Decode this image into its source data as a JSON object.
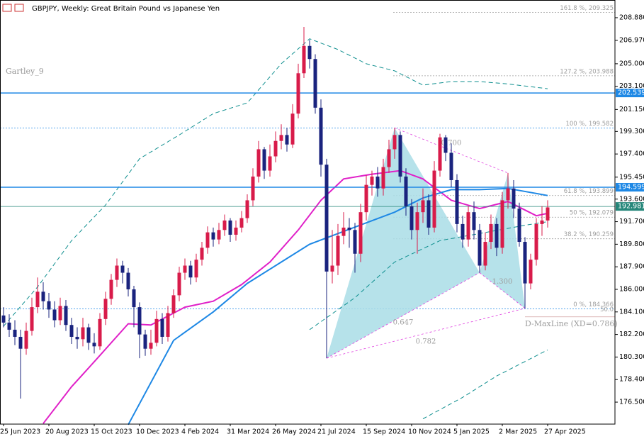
{
  "chart_data": {
    "type": "candlestick",
    "title": "GBPJPY, Weekly:  Great Britain Pound vs Japanese Yen",
    "indicator_label": "Gartley_9",
    "categories": [
      "25 Jun 2023",
      null,
      null,
      null,
      null,
      null,
      null,
      null,
      "20 Aug 2023",
      null,
      null,
      null,
      null,
      null,
      null,
      null,
      "15 Oct 2023",
      null,
      null,
      null,
      null,
      null,
      null,
      null,
      "10 Dec 2023",
      null,
      null,
      null,
      null,
      null,
      null,
      null,
      "4 Feb 2024",
      null,
      null,
      null,
      null,
      null,
      null,
      null,
      "31 Mar 2024",
      null,
      null,
      null,
      null,
      null,
      null,
      null,
      "26 May 2024",
      null,
      null,
      null,
      null,
      null,
      null,
      null,
      "21 Jul 2024",
      null,
      null,
      null,
      null,
      null,
      null,
      null,
      "15 Sep 2024",
      null,
      null,
      null,
      null,
      null,
      null,
      null,
      "10 Nov 2024",
      null,
      null,
      null,
      null,
      null,
      null,
      null,
      "5 Jan 2025",
      null,
      null,
      null,
      null,
      null,
      null,
      null,
      "2 Mar 2025",
      null,
      null,
      null,
      null,
      null,
      null,
      null,
      "27 Apr 2025"
    ],
    "open": [
      183.8,
      183.2,
      182.6,
      182.0,
      181.0,
      182.5,
      184.5,
      185.8,
      185.0,
      184.3,
      183.4,
      184.6,
      183.0,
      182.0,
      181.8,
      182.8,
      181.5,
      181.2,
      183.5,
      185.2,
      186.8,
      188.0,
      187.4,
      186.0,
      184.5,
      182.2,
      181.0,
      181.5,
      183.5,
      182.0,
      184.0,
      185.5,
      187.4,
      188.0,
      187.0,
      188.5,
      189.5,
      190.8,
      190.2,
      191.0,
      191.8,
      190.6,
      191.2,
      192.0,
      193.5,
      195.5,
      197.8,
      196.0,
      197.2,
      198.5,
      199.0,
      198.2,
      200.8,
      204.2,
      206.5,
      205.4,
      201.3,
      196.5,
      187.5,
      188.0,
      190.5,
      191.2,
      191.0,
      189.0,
      192.5,
      194.8,
      195.5,
      194.5,
      196.3,
      197.8,
      199.0,
      195.5,
      193.0,
      191.0,
      192.5,
      193.5,
      191.2,
      196.0,
      198.8,
      197.5,
      195.2,
      191.5,
      190.2,
      192.5,
      191.0,
      188.0,
      190.0,
      191.5,
      189.5,
      193.5,
      194.5,
      192.8,
      190.0,
      186.5,
      188.5,
      191.5,
      191.8
    ],
    "high": [
      184.5,
      183.9,
      183.4,
      182.6,
      183.2,
      185.3,
      187.0,
      186.6,
      185.7,
      185.0,
      185.3,
      185.1,
      183.6,
      182.8,
      183.6,
      183.1,
      182.3,
      184.0,
      185.8,
      187.3,
      188.6,
      188.4,
      187.8,
      186.3,
      184.9,
      182.6,
      182.6,
      184.2,
      184.0,
      184.6,
      186.0,
      187.9,
      188.6,
      188.4,
      189.0,
      190.0,
      191.3,
      191.2,
      191.6,
      192.3,
      192.0,
      191.8,
      192.6,
      194.0,
      196.2,
      198.5,
      198.0,
      198.2,
      199.3,
      199.9,
      199.6,
      201.6,
      205.0,
      208.1,
      207.0,
      205.8,
      202.0,
      197.0,
      191.0,
      191.5,
      192.5,
      192.0,
      191.6,
      193.2,
      195.6,
      196.0,
      196.3,
      197.0,
      198.6,
      199.6,
      199.3,
      196.2,
      193.6,
      193.3,
      194.5,
      194.0,
      196.8,
      199.1,
      199.0,
      198.3,
      195.7,
      192.2,
      193.0,
      193.4,
      191.5,
      190.8,
      192.3,
      192.0,
      194.2,
      195.8,
      195.2,
      193.3,
      190.4,
      189.0,
      192.0,
      193.0,
      193.5
    ],
    "low": [
      182.8,
      182.0,
      181.3,
      176.8,
      180.5,
      182.1,
      184.0,
      184.3,
      183.6,
      182.8,
      183.0,
      182.5,
      181.4,
      181.0,
      181.2,
      180.9,
      180.6,
      180.9,
      183.0,
      184.7,
      186.2,
      186.5,
      185.4,
      182.8,
      180.2,
      180.4,
      180.5,
      181.2,
      181.4,
      181.6,
      183.6,
      185.0,
      186.8,
      186.4,
      186.6,
      188.0,
      189.0,
      189.6,
      189.8,
      190.5,
      190.0,
      190.1,
      190.8,
      191.6,
      193.0,
      195.0,
      195.3,
      195.5,
      196.7,
      197.8,
      197.6,
      197.9,
      200.4,
      203.8,
      204.6,
      200.8,
      195.5,
      180.2,
      186.5,
      187.2,
      189.8,
      189.5,
      187.4,
      188.3,
      191.8,
      193.9,
      193.8,
      193.9,
      195.8,
      197.0,
      195.0,
      192.2,
      190.2,
      189.0,
      191.6,
      190.6,
      190.8,
      195.5,
      196.8,
      194.6,
      190.8,
      189.5,
      189.6,
      190.2,
      187.4,
      187.6,
      189.4,
      188.8,
      189.0,
      192.8,
      192.0,
      189.6,
      184.4,
      186.0,
      188.0,
      190.5,
      191.2
    ],
    "close": [
      183.2,
      182.6,
      182.0,
      181.0,
      182.5,
      184.5,
      185.8,
      185.0,
      184.3,
      183.4,
      184.6,
      183.0,
      182.0,
      181.8,
      182.8,
      181.5,
      181.2,
      183.5,
      185.2,
      186.8,
      188.0,
      187.4,
      186.0,
      184.5,
      182.2,
      181.0,
      181.5,
      183.5,
      182.0,
      184.0,
      185.5,
      187.4,
      188.0,
      187.0,
      188.5,
      189.5,
      190.8,
      190.2,
      191.0,
      191.8,
      190.6,
      191.2,
      192.0,
      193.5,
      195.5,
      197.8,
      196.0,
      197.2,
      198.5,
      199.0,
      198.2,
      200.8,
      204.2,
      206.5,
      205.4,
      201.3,
      196.5,
      187.5,
      188.0,
      190.5,
      191.2,
      191.0,
      189.0,
      192.5,
      194.8,
      195.5,
      194.5,
      196.3,
      197.8,
      199.0,
      195.5,
      193.0,
      191.0,
      192.5,
      193.5,
      191.2,
      196.0,
      198.8,
      197.5,
      195.2,
      191.5,
      190.2,
      192.5,
      191.0,
      188.0,
      190.0,
      191.5,
      189.5,
      193.5,
      194.5,
      192.8,
      190.0,
      186.5,
      188.5,
      191.5,
      191.8,
      192.9
    ],
    "up_color": "#d81b4a",
    "down_color": "#1a237e",
    "xlim": [
      -0.625,
      107.875
    ],
    "ylim": [
      174.65,
      210.37
    ],
    "yticks": [
      {
        "value": 208.88,
        "label": "208.880"
      },
      {
        "value": 206.97,
        "label": "206.970"
      },
      {
        "value": 205.0,
        "label": "205.000"
      },
      {
        "value": 203.1,
        "label": "203.100"
      },
      {
        "value": 201.15,
        "label": "201.150"
      },
      {
        "value": 199.3,
        "label": "199.300"
      },
      {
        "value": 197.4,
        "label": "197.400"
      },
      {
        "value": 195.45,
        "label": "195.450"
      },
      {
        "value": 193.6,
        "label": "193.600"
      },
      {
        "value": 191.7,
        "label": "191.700"
      },
      {
        "value": 189.8,
        "label": "189.800"
      },
      {
        "value": 187.9,
        "label": "187.900"
      },
      {
        "value": 186.0,
        "label": "186.000"
      },
      {
        "value": 184.1,
        "label": "184.100"
      },
      {
        "value": 182.2,
        "label": "182.200"
      },
      {
        "value": 180.3,
        "label": "180.300"
      },
      {
        "value": 178.4,
        "label": "178.400"
      },
      {
        "value": 176.5,
        "label": "176.500"
      }
    ],
    "overlays": [
      {
        "color": "#e020c8",
        "dash": "",
        "x": [
          7,
          12,
          16,
          22,
          26,
          32,
          37,
          42,
          47,
          52,
          56,
          60,
          65,
          70,
          74,
          79,
          84,
          89,
          94,
          96
        ],
        "values": [
          174.7,
          177.8,
          179.9,
          183.1,
          183.0,
          184.5,
          185.0,
          186.4,
          188.3,
          191.0,
          193.5,
          195.3,
          195.7,
          196.0,
          195.3,
          193.5,
          192.8,
          193.4,
          192.2,
          192.4
        ]
      },
      {
        "color": "#1e88e5",
        "dash": "",
        "x": [
          22,
          30,
          37,
          43,
          49,
          54,
          59,
          64,
          69,
          74,
          79,
          84,
          89,
          96
        ],
        "values": [
          174.6,
          181.7,
          184.1,
          186.5,
          188.3,
          189.8,
          190.7,
          191.6,
          192.5,
          193.7,
          194.4,
          194.4,
          194.5,
          193.9
        ]
      },
      {
        "color": "#0f8f8f",
        "dash": "6 4",
        "x": [
          0,
          6,
          12,
          18,
          24,
          31,
          37,
          43,
          49,
          54,
          59,
          64,
          69,
          74,
          79,
          84,
          89,
          96
        ],
        "values": [
          182.9,
          186.2,
          190.1,
          193.1,
          197.0,
          199.0,
          200.8,
          201.7,
          205.0,
          207.1,
          206.2,
          205.0,
          204.4,
          203.2,
          203.5,
          203.5,
          203.3,
          202.9
        ]
      },
      {
        "color": "#0f8f8f",
        "dash": "6 4",
        "x": [
          54,
          62,
          69,
          77,
          84,
          92,
          96
        ],
        "values": [
          182.6,
          185.3,
          188.3,
          190.1,
          190.7,
          191.4,
          191.7
        ]
      },
      {
        "color": "#0f8f8f",
        "dash": "6 4",
        "x": [
          74,
          81,
          87,
          96
        ],
        "values": [
          175.1,
          176.9,
          178.7,
          180.9
        ]
      }
    ],
    "pattern": {
      "x": [
        57,
        69,
        84,
        89,
        92
      ],
      "values": [
        180.2,
        199.6,
        187.4,
        195.8,
        184.4
      ],
      "fill": "#a9dde6",
      "line_color": "#e040e0"
    },
    "pattern_labels": [
      "0.700",
      "1.300",
      "0.647",
      "0.782"
    ],
    "d_maxline": "D-MaxLine (XD=0.786)",
    "level_note": "50.0",
    "fib_levels": [
      {
        "label": "161.8 %, 209.325",
        "value": 209.325,
        "color": "#9e9e9e"
      },
      {
        "label": "127.2 %, 203.988",
        "value": 203.988,
        "color": "#9e9e9e"
      },
      {
        "label": "100 %, 199.582",
        "value": 199.582,
        "color": "#1e88e5"
      },
      {
        "label": "61.8 %, 193.899",
        "value": 193.899,
        "color": "#9e9e9e"
      },
      {
        "label": "50 %, 192.079",
        "value": 192.079,
        "color": "#9e9e9e"
      },
      {
        "label": "38.2 %, 190.259",
        "value": 190.259,
        "color": "#9e9e9e"
      },
      {
        "label": "0 %, 184.366",
        "value": 184.366,
        "color": "#1e88e5"
      }
    ],
    "price_lines": [
      {
        "value": 202.539,
        "color": "#1e88e5"
      },
      {
        "value": 194.599,
        "color": "#1e88e5"
      },
      {
        "value": 192.981,
        "color": "#26877a"
      }
    ]
  }
}
